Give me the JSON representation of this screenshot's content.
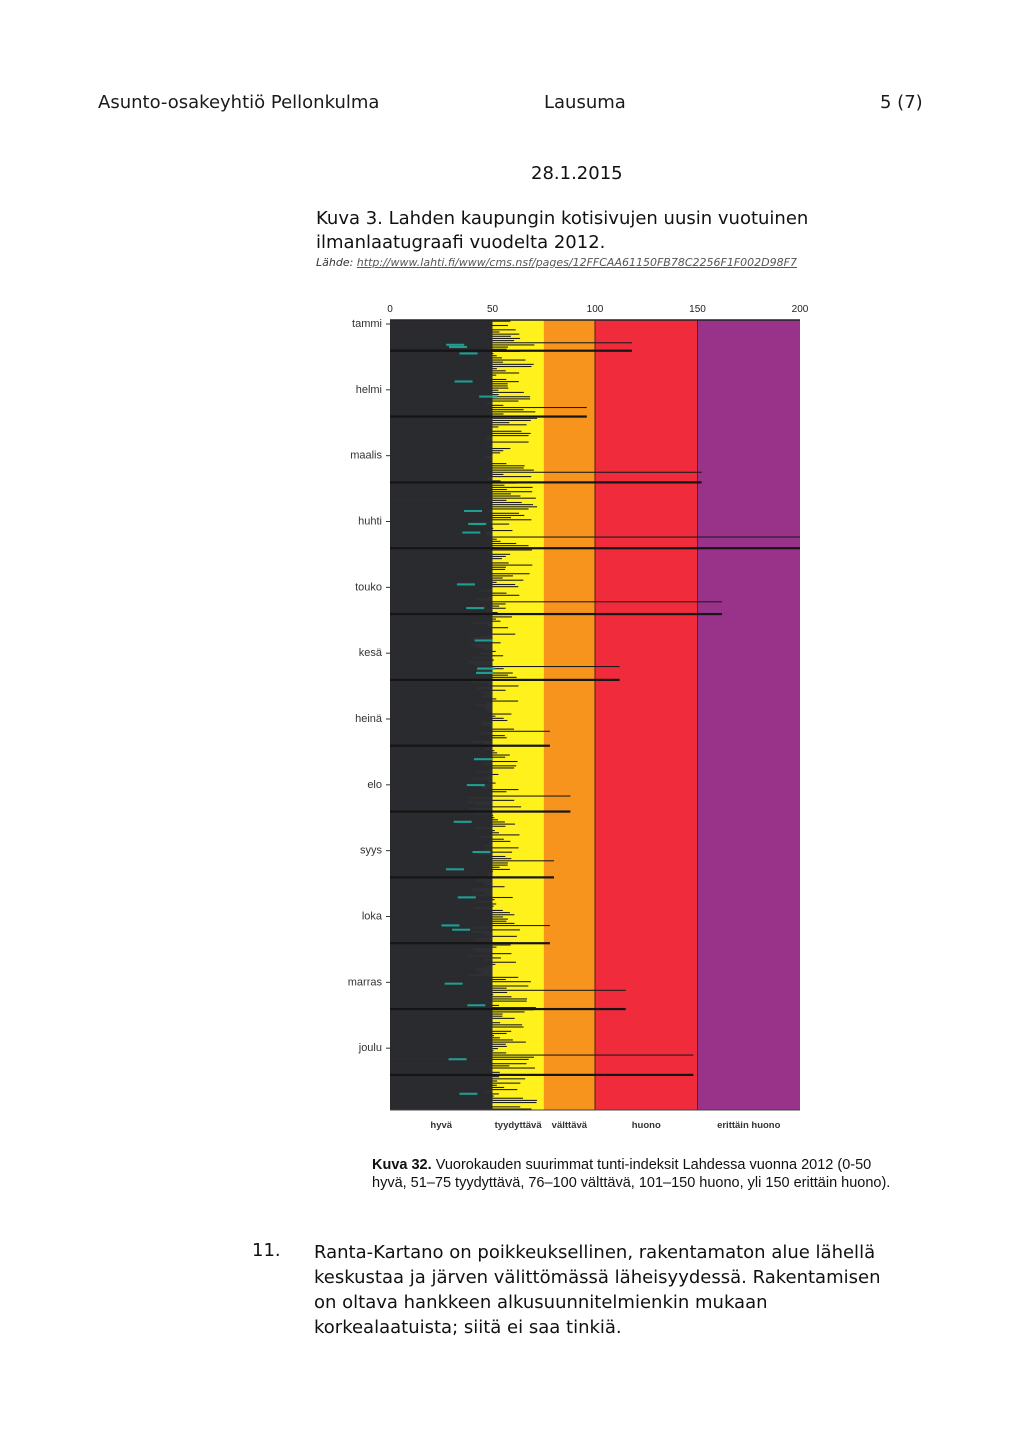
{
  "header": {
    "organization": "Asunto-osakeyhtiö Pellonkulma",
    "doc_type": "Lausuma",
    "page": "5 (7)"
  },
  "date": "28.1.2015",
  "figure_caption": {
    "text": "Kuva 3. Lahden kaupungin kotisivujen uusin vuotuinen ilmanlaatugraafi vuodelta 2012.",
    "source_label": "Lähde:",
    "source_url": "http://www.lahti.fi/www/cms.nsf/pages/12FFCAA61150FB78C2256F1F002D98F7"
  },
  "chart_data": {
    "type": "bar",
    "orientation": "horizontal",
    "xlim": [
      0,
      200
    ],
    "x_ticks": [
      "0",
      "50",
      "100",
      "150",
      "200"
    ],
    "y_labels": [
      "tammi",
      "helmi",
      "maalis",
      "huhti",
      "touko",
      "kesä",
      "heinä",
      "elo",
      "syys",
      "loka",
      "marras",
      "joulu"
    ],
    "bands": [
      {
        "label": "hyvä",
        "from": 0,
        "to": 50,
        "color": "#2f3033"
      },
      {
        "label": "tyydyttävä",
        "from": 50,
        "to": 75,
        "color": "#fff21c"
      },
      {
        "label": "välttävä",
        "from": 75,
        "to": 100,
        "color": "#f7941d"
      },
      {
        "label": "huono",
        "from": 100,
        "to": 150,
        "color": "#ef2b3c"
      },
      {
        "label": "erittäin huono",
        "from": 150,
        "to": 200,
        "color": "#99338a"
      }
    ],
    "monthly_max_index": [
      118,
      96,
      152,
      200,
      162,
      112,
      78,
      88,
      80,
      78,
      115,
      148
    ]
  },
  "chart_caption": {
    "label": "Kuva 32.",
    "text": "Vuorokauden suurimmat tunti-indeksit Lahdessa vuonna 2012 (0-50 hyvä, 51–75 tyydyttävä, 76–100 välttävä, 101–150 huono, yli 150 erittäin huono)."
  },
  "item": {
    "number": "11.",
    "text": "Ranta-Kartano on poikkeuksellinen, rakentamaton alue lähellä keskustaa ja järven välittömässä läheisyydessä. Rakentamisen on oltava hankkeen alkusuunnitelmienkin mukaan korkealaatuista; siitä ei saa tinkiä."
  }
}
